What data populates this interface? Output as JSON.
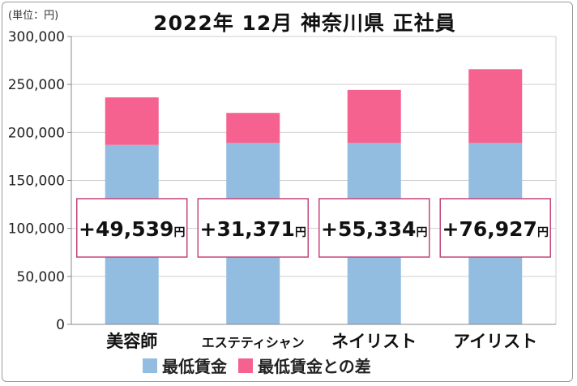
{
  "unit_label": "(単位：円)",
  "chart_data": {
    "type": "bar",
    "stacked": true,
    "title": "2022年 12月  神奈川県  正社員",
    "categories": [
      "美容師",
      "エステティシャン",
      "ネイリスト",
      "アイリスト"
    ],
    "series": [
      {
        "name": "最低賃金",
        "color": "#92bde0",
        "values": [
          187000,
          189000,
          189000,
          189000
        ]
      },
      {
        "name": "最低賃金との差",
        "color": "#f5628f",
        "values": [
          49539,
          31371,
          55334,
          76927
        ]
      }
    ],
    "ylim": [
      0,
      300000
    ],
    "yticks": [
      "0",
      "50,000",
      "100,000",
      "150,000",
      "200,000",
      "250,000",
      "300,000"
    ],
    "yticks_values": [
      0,
      50000,
      100000,
      150000,
      200000,
      250000,
      300000
    ],
    "grid": true,
    "legend": "bottom",
    "annotations": [
      {
        "value": "+49,539",
        "unit": "円"
      },
      {
        "value": "+31,371",
        "unit": "円"
      },
      {
        "value": "+55,334",
        "unit": "円"
      },
      {
        "value": "+76,927",
        "unit": "円"
      }
    ],
    "annotation_border_color": "#c4457a"
  }
}
